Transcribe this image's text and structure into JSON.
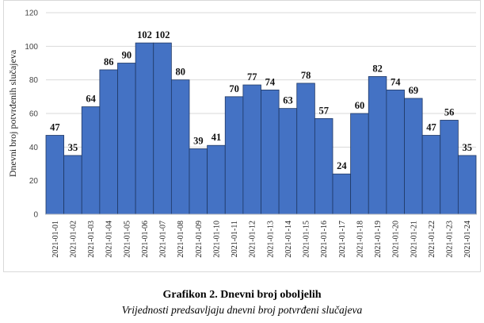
{
  "caption": {
    "title": "Grafikon 2. Dnevni broj oboljelih",
    "subtitle": "Vrijednosti predsavljaju dnevni broj potvrđeni slučajeva"
  },
  "chart_data": {
    "type": "bar",
    "ylabel": "Dnevni broj potvrđenih slučajeva",
    "ylim": [
      0,
      120
    ],
    "yticks": [
      0,
      20,
      40,
      60,
      80,
      100,
      120
    ],
    "grid": true,
    "bar_color": "#4472C4",
    "categories": [
      "2021-01-01",
      "2021-01-02",
      "2021-01-03",
      "2021-01-04",
      "2021-01-05",
      "2021-01-06",
      "2021-01-07",
      "2021-01-08",
      "2021-01-09",
      "2021-01-10",
      "2021-01-11",
      "2021-01-12",
      "2021-01-13",
      "2021-01-14",
      "2021-01-15",
      "2021-01-16",
      "2021-01-17",
      "2021-01-18",
      "2021-01-19",
      "2021-01-20",
      "2021-01-21",
      "2021-01-22",
      "2021-01-23",
      "2021-01-24"
    ],
    "values": [
      47,
      35,
      64,
      86,
      90,
      102,
      102,
      80,
      39,
      41,
      70,
      77,
      74,
      63,
      78,
      57,
      24,
      60,
      82,
      74,
      69,
      47,
      56,
      35
    ]
  }
}
